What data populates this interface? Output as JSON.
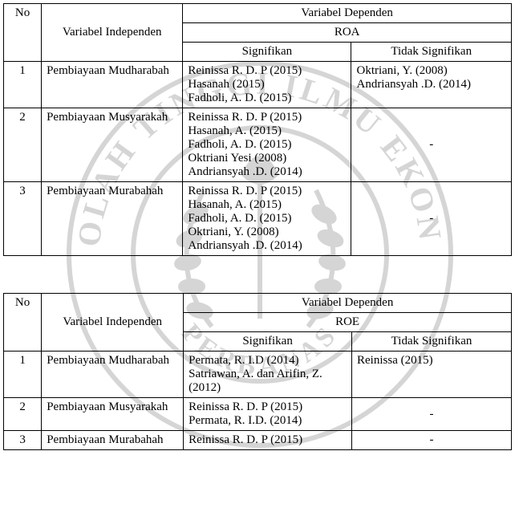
{
  "header": {
    "no": "No",
    "independen": "Variabel Independen",
    "dependen": "Variabel Dependen",
    "roa": "ROA",
    "roe": "ROE",
    "signifikan": "Signifikan",
    "tidak_signifikan": "Tidak Signifikan"
  },
  "roa_rows": [
    {
      "no": "1",
      "indep": "Pembiayaan Mudharabah",
      "sig": "Reinissa R. D. P (2015)\nHasanah (2015)\nFadholi, A. D. (2015)",
      "tidak": "Oktriani, Y.  (2008)\nAndriansyah .D. (2014)"
    },
    {
      "no": "2",
      "indep": "Pembiayaan Musyarakah",
      "sig": "Reinissa R. D. P (2015)\nHasanah, A.  (2015)\nFadholi, A. D. (2015)\nOktriani Yesi (2008)\nAndriansyah .D. (2014)",
      "tidak": "-"
    },
    {
      "no": "3",
      "indep": "Pembiayaan Murabahah",
      "sig": "Reinissa R. D. P (2015)\nHasanah, A.  (2015)\nFadholi, A. D. (2015)\nOktriani, Y. (2008)\nAndriansyah .D. (2014)",
      "tidak": "-"
    }
  ],
  "roe_rows": [
    {
      "no": "1",
      "indep": "Pembiayaan Mudharabah",
      "sig": "Permata, R. I.D (2014)\nSatriawan,  A.  dan  Arifin, Z.  (2012)",
      "tidak": "Reinissa (2015)"
    },
    {
      "no": "2",
      "indep": "Pembiayaan Musyarakah",
      "sig": "Reinissa R. D. P (2015)\nPermata, R. I.D. (2014)",
      "tidak": "-"
    },
    {
      "no": "3",
      "indep": "Pembiayaan Murabahah",
      "sig": "Reinissa R. D. P (2015)",
      "tidak": "-"
    }
  ],
  "watermark": {
    "outer_text": "SEKOLAH TINGGI ILMU EKONOMI",
    "inner_text": "PERBANAS",
    "color": "#000000",
    "radius_outer": 240,
    "radius_inner": 130
  }
}
